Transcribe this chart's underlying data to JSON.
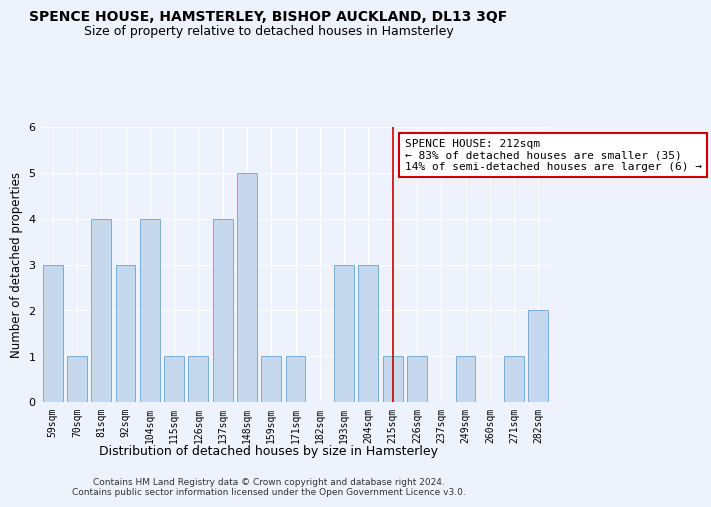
{
  "title": "SPENCE HOUSE, HAMSTERLEY, BISHOP AUCKLAND, DL13 3QF",
  "subtitle": "Size of property relative to detached houses in Hamsterley",
  "xlabel": "Distribution of detached houses by size in Hamsterley",
  "ylabel": "Number of detached properties",
  "categories": [
    "59sqm",
    "70sqm",
    "81sqm",
    "92sqm",
    "104sqm",
    "115sqm",
    "126sqm",
    "137sqm",
    "148sqm",
    "159sqm",
    "171sqm",
    "182sqm",
    "193sqm",
    "204sqm",
    "215sqm",
    "226sqm",
    "237sqm",
    "249sqm",
    "260sqm",
    "271sqm",
    "282sqm"
  ],
  "values": [
    3,
    1,
    4,
    3,
    4,
    1,
    1,
    4,
    5,
    1,
    1,
    0,
    3,
    3,
    1,
    1,
    0,
    1,
    0,
    1,
    2
  ],
  "bar_color": "#c5d8ee",
  "bar_edge_color": "#7aadd4",
  "ylim": [
    0,
    6
  ],
  "yticks": [
    0,
    1,
    2,
    3,
    4,
    5,
    6
  ],
  "vline_x": 14.0,
  "vline_color": "#cc0000",
  "annotation_text_line1": "SPENCE HOUSE: 212sqm",
  "annotation_text_line2": "← 83% of detached houses are smaller (35)",
  "annotation_text_line3": "14% of semi-detached houses are larger (6) →",
  "annotation_box_color": "#cc0000",
  "footer_text": "Contains HM Land Registry data © Crown copyright and database right 2024.\nContains public sector information licensed under the Open Government Licence v3.0.",
  "background_color": "#eef2fc",
  "title_fontsize": 10,
  "subtitle_fontsize": 9,
  "tick_fontsize": 7,
  "ylabel_fontsize": 8.5,
  "xlabel_fontsize": 9,
  "footer_fontsize": 6.5,
  "annotation_fontsize": 8
}
